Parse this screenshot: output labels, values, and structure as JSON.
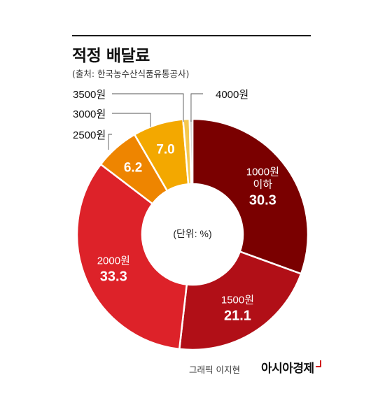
{
  "title": "적정 배달료",
  "subtitle": "(출처: 한국농수산식품유통공사)",
  "center_label": "(단위: %)",
  "credit": "그래픽 이지현",
  "brand": "아시아경제",
  "chart_data": {
    "type": "pie",
    "unit": "%",
    "slices": [
      {
        "label": [
          "1000원",
          "이하"
        ],
        "value": 30.3,
        "value_text": "30.3",
        "color": "#7a0000",
        "label_place": "inside"
      },
      {
        "label": [
          "1500원"
        ],
        "value": 21.1,
        "value_text": "21.1",
        "color": "#b10f17",
        "label_place": "inside"
      },
      {
        "label": [
          "2000원"
        ],
        "value": 33.3,
        "value_text": "33.3",
        "color": "#dd2229",
        "label_place": "inside"
      },
      {
        "label": [
          "2500원"
        ],
        "value": 6.2,
        "value_text": "6.2",
        "color": "#ee8500",
        "label_place": "callout"
      },
      {
        "label": [
          "3000원"
        ],
        "value": 7.0,
        "value_text": "7.0",
        "color": "#f3a800",
        "label_place": "callout"
      },
      {
        "label": [
          "3500원"
        ],
        "value": 0.9,
        "value_text": "",
        "color": "#f5c84e",
        "label_place": "callout"
      },
      {
        "label": [
          "4000원"
        ],
        "value": 0.4,
        "value_text": "",
        "color": "#c8c8c8",
        "label_place": "callout"
      }
    ]
  }
}
